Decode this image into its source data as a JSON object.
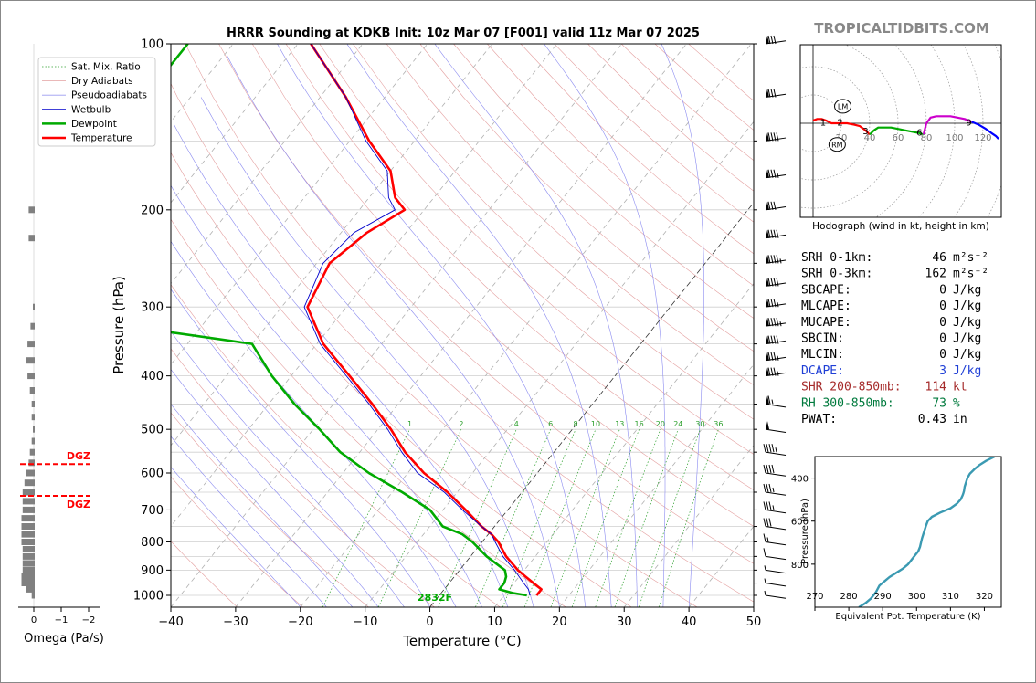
{
  "chart_data": [
    {
      "type": "line",
      "title": "HRRR Sounding at KDKB Init: 10z Mar 07 [F001] valid 11z Mar 07 2025",
      "xlabel": "Temperature (°C)",
      "ylabel": "Pressure (hPa)",
      "xlim": [
        -40,
        50
      ],
      "ylim": [
        1050,
        100
      ],
      "yscale": "log",
      "skew": true,
      "x_ticks": [
        "−40",
        "−30",
        "−20",
        "−10",
        "0",
        "10",
        "20",
        "30",
        "40",
        "50"
      ],
      "y_ticks": [
        "100",
        "200",
        "300",
        "400",
        "500",
        "600",
        "700",
        "800",
        "900",
        "1000"
      ],
      "legend": {
        "position": "top-left",
        "entries": [
          "Sat. Mix. Ratio",
          "Dry Adiabats",
          "Pseudoadiabats",
          "Wetbulb",
          "Dewpoint",
          "Temperature"
        ]
      },
      "mixing_ratio_labels": [
        "1",
        "2",
        "4",
        "6",
        "8",
        "10",
        "13",
        "16",
        "20",
        "24",
        "30",
        "36"
      ],
      "surface_label": "2832F",
      "series": [
        {
          "name": "Temperature",
          "color": "#ff0000",
          "p": [
            1000,
            990,
            975,
            950,
            925,
            900,
            850,
            800,
            775,
            750,
            700,
            650,
            600,
            550,
            500,
            450,
            400,
            350,
            300,
            250,
            220,
            200,
            190,
            170,
            150,
            125,
            100
          ],
          "t": [
            15,
            15,
            15,
            13,
            11,
            9,
            5.5,
            2.5,
            0.5,
            -2,
            -6.5,
            -11.5,
            -17.5,
            -23,
            -28,
            -34,
            -41,
            -49,
            -56,
            -58,
            -56,
            -53,
            -56,
            -60,
            -67,
            -76,
            -88
          ]
        },
        {
          "name": "Wetbulb",
          "color": "#0000cc",
          "p": [
            1000,
            975,
            950,
            925,
            900,
            850,
            800,
            775,
            750,
            700,
            650,
            600,
            550,
            500,
            450,
            400,
            350,
            300,
            250,
            220,
            200,
            190,
            170,
            150,
            125,
            100
          ],
          "t": [
            14,
            13,
            11.5,
            10,
            8.5,
            5,
            2,
            0.5,
            -2,
            -7,
            -12,
            -18.5,
            -23.5,
            -28.5,
            -34.5,
            -41.5,
            -49.5,
            -56.5,
            -59,
            -58,
            -54.5,
            -57,
            -60.5,
            -67.5,
            -76,
            -88
          ]
        },
        {
          "name": "Dewpoint",
          "color": "#00aa00",
          "p": [
            1000,
            990,
            975,
            950,
            925,
            900,
            850,
            800,
            775,
            750,
            700,
            650,
            600,
            550,
            500,
            450,
            400,
            350,
            330,
            300,
            280,
            250,
            220,
            200,
            170,
            150,
            100
          ],
          "t": [
            13.5,
            11,
            8.5,
            8.5,
            8,
            7,
            2.5,
            -1.5,
            -4,
            -8,
            -12,
            -18.5,
            -26,
            -33,
            -39,
            -46,
            -53,
            -60,
            -77,
            -80.5,
            -83.5,
            -88,
            -94,
            -100,
            -111,
            -107,
            -107
          ]
        }
      ]
    },
    {
      "type": "line",
      "title": "Hodograph (wind in kt, height in km)",
      "xlim": [
        -10,
        135
      ],
      "ylim": [
        -55,
        60
      ],
      "ring_labels": [
        "20",
        "40",
        "60",
        "80",
        "100",
        "120"
      ],
      "storm_motion": [
        {
          "name": "LM",
          "u": 21,
          "v": 12
        },
        {
          "name": "RM",
          "u": 17,
          "v": -15
        }
      ],
      "height_labels": [
        {
          "km": "1",
          "u": 7,
          "v": 1
        },
        {
          "km": "2",
          "u": 19,
          "v": 1
        },
        {
          "km": "3",
          "u": 37,
          "v": -5
        },
        {
          "km": "6",
          "u": 75,
          "v": -6
        },
        {
          "km": "9",
          "u": 110,
          "v": 1
        }
      ],
      "segments": [
        {
          "color": "#ff0000",
          "u": [
            0,
            3,
            6,
            9,
            13,
            16,
            19,
            24,
            29,
            33,
            37,
            40
          ],
          "v": [
            2,
            3,
            3,
            2,
            0,
            0,
            0,
            0,
            -1,
            -2,
            -5,
            -8
          ]
        },
        {
          "color": "#00aa00",
          "u": [
            40,
            43,
            46,
            50,
            55,
            60,
            65,
            70,
            75,
            78
          ],
          "v": [
            -8,
            -5,
            -3,
            -3,
            -3,
            -4,
            -5,
            -6,
            -7,
            -8
          ]
        },
        {
          "color": "#cc00cc",
          "u": [
            78,
            80,
            83,
            87,
            92,
            97,
            102,
            107,
            112
          ],
          "v": [
            -8,
            0,
            4,
            5,
            5,
            5,
            4,
            3,
            1
          ]
        },
        {
          "color": "#0000ff",
          "u": [
            112,
            117,
            122,
            126,
            129,
            131
          ],
          "v": [
            1,
            -1,
            -4,
            -7,
            -9,
            -11
          ]
        }
      ]
    },
    {
      "type": "line",
      "xlabel": "Equivalent Pot. Temperature (K)",
      "ylabel": "Pressure (hPa)",
      "xlim": [
        270,
        325
      ],
      "ylim": [
        1000,
        300
      ],
      "x_ticks": [
        "270",
        "280",
        "290",
        "300",
        "310",
        "320"
      ],
      "y_ticks": [
        "400",
        "600",
        "800"
      ],
      "series": [
        {
          "name": "Theta-E",
          "color": "#3b9ab2",
          "p": [
            1000,
            980,
            960,
            930,
            900,
            880,
            860,
            840,
            820,
            800,
            780,
            760,
            740,
            720,
            700,
            680,
            660,
            640,
            620,
            600,
            580,
            560,
            540,
            520,
            500,
            480,
            470,
            460,
            440,
            420,
            400,
            380,
            360,
            340,
            320,
            300
          ],
          "t": [
            283,
            285,
            286.5,
            288,
            289,
            290.5,
            292,
            294,
            296,
            297.5,
            298.5,
            299.5,
            300.5,
            301,
            301.3,
            301.6,
            302,
            302.4,
            302.8,
            303.3,
            304.5,
            307,
            310,
            311.8,
            313,
            313.6,
            313.8,
            314,
            314.2,
            314.6,
            315,
            315.7,
            317,
            318.5,
            320.5,
            323
          ]
        }
      ]
    },
    {
      "type": "bar",
      "xlabel": "Omega (Pa/s)",
      "x_ticks": [
        "0",
        "−1",
        "−2"
      ],
      "dgz_label": "DGZ",
      "dgz_levels": [
        578,
        660
      ],
      "p": [
        1000,
        975,
        950,
        925,
        900,
        875,
        850,
        825,
        800,
        775,
        750,
        725,
        700,
        675,
        650,
        625,
        600,
        575,
        550,
        525,
        500,
        475,
        450,
        425,
        400,
        375,
        350,
        325,
        300,
        275,
        250,
        225,
        200,
        175,
        150,
        125
      ],
      "omega": [
        -0.05,
        -0.15,
        -0.22,
        -0.22,
        -0.2,
        -0.2,
        -0.2,
        -0.2,
        -0.22,
        -0.22,
        -0.22,
        -0.22,
        -0.2,
        -0.2,
        -0.2,
        -0.17,
        -0.15,
        -0.1,
        -0.08,
        -0.05,
        -0.03,
        -0.05,
        -0.05,
        -0.08,
        -0.12,
        -0.15,
        -0.12,
        -0.07,
        -0.02,
        0,
        0,
        -0.1,
        -0.1,
        0,
        0,
        0
      ]
    },
    {
      "type": "table",
      "rows": [
        {
          "label": "SRH 0-1km:",
          "value": "46",
          "unit": "m²s⁻²",
          "color": "#000000"
        },
        {
          "label": "SRH 0-3km:",
          "value": "162",
          "unit": "m²s⁻²",
          "color": "#000000"
        },
        {
          "label": "SBCAPE:",
          "value": "0",
          "unit": "J/kg",
          "color": "#000000"
        },
        {
          "label": "MLCAPE:",
          "value": "0",
          "unit": "J/kg",
          "color": "#000000"
        },
        {
          "label": "MUCAPE:",
          "value": "0",
          "unit": "J/kg",
          "color": "#000000"
        },
        {
          "label": "SBCIN:",
          "value": "0",
          "unit": "J/kg",
          "color": "#000000"
        },
        {
          "label": "MLCIN:",
          "value": "0",
          "unit": "J/kg",
          "color": "#000000"
        },
        {
          "label": "DCAPE:",
          "value": "3",
          "unit": "J/kg",
          "color": "#1f3fd6"
        },
        {
          "label": "SHR 200-850mb:",
          "value": "114",
          "unit": "kt",
          "color": "#a52a2a"
        },
        {
          "label": "RH 300-850mb:",
          "value": "73",
          "unit": "%",
          "color": "#007a3d"
        },
        {
          "label": "PWAT:",
          "value": "0.43",
          "unit": "in",
          "color": "#000000"
        }
      ]
    }
  ],
  "branding": {
    "site": "TROPICALTIDBITS.COM"
  },
  "wind_barbs": {
    "levels": [
      100,
      125,
      150,
      175,
      200,
      225,
      250,
      275,
      300,
      325,
      350,
      375,
      400,
      450,
      500,
      550,
      600,
      650,
      700,
      750,
      800,
      850,
      900,
      950,
      1000
    ],
    "speeds": [
      80,
      80,
      90,
      85,
      80,
      90,
      95,
      90,
      85,
      95,
      90,
      85,
      85,
      65,
      50,
      45,
      40,
      35,
      35,
      30,
      15,
      10,
      5,
      5,
      5
    ]
  },
  "colors": {
    "temperature": "#ff0000",
    "dewpoint": "#00aa00",
    "wetbulb": "#0000cc",
    "dgz": "#ff0000",
    "omega_bar": "#808080",
    "site_logo": "#888888"
  }
}
